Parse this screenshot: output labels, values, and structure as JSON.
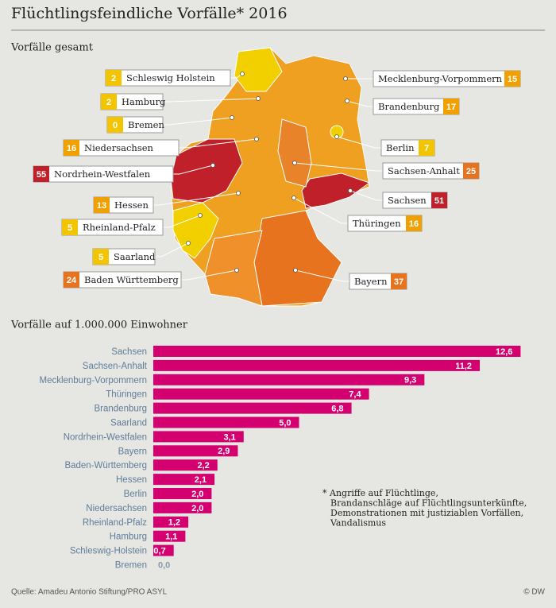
{
  "header": {
    "title": "Flüchtlingsfeindliche Vorfälle* 2016"
  },
  "map": {
    "subtitle": "Vorfälle gesamt",
    "states": [
      {
        "name": "Schleswig Holstein",
        "value": 2,
        "color": "#f2c500"
      },
      {
        "name": "Hamburg",
        "value": 2,
        "color": "#f2c500"
      },
      {
        "name": "Bremen",
        "value": 0,
        "color": "#f2c500"
      },
      {
        "name": "Niedersachsen",
        "value": 16,
        "color": "#f0a000"
      },
      {
        "name": "Nordrhein-Westfalen",
        "value": 55,
        "color": "#c0202a"
      },
      {
        "name": "Hessen",
        "value": 13,
        "color": "#f0a000"
      },
      {
        "name": "Rheinland-Pfalz",
        "value": 5,
        "color": "#f2c500"
      },
      {
        "name": "Saarland",
        "value": 5,
        "color": "#f2c500"
      },
      {
        "name": "Baden Württemberg",
        "value": 24,
        "color": "#e8731f"
      },
      {
        "name": "Mecklenburg-Vorpommern",
        "value": 15,
        "color": "#f0a000"
      },
      {
        "name": "Brandenburg",
        "value": 17,
        "color": "#f0a000"
      },
      {
        "name": "Berlin",
        "value": 7,
        "color": "#f2c500"
      },
      {
        "name": "Sachsen-Anhalt",
        "value": 25,
        "color": "#e8731f"
      },
      {
        "name": "Sachsen",
        "value": 51,
        "color": "#c0202a"
      },
      {
        "name": "Thüringen",
        "value": 16,
        "color": "#f0a000"
      },
      {
        "name": "Bayern",
        "value": 37,
        "color": "#e8731f"
      }
    ]
  },
  "chart_data": {
    "type": "bar",
    "title": "Vorfälle auf 1.000.000 Einwohner",
    "categories": [
      "Sachsen",
      "Sachsen-Anhalt",
      "Mecklenburg-Vorpommern",
      "Thüringen",
      "Brandenburg",
      "Saarland",
      "Nordrhein-Westfalen",
      "Bayern",
      "Baden-Württemberg",
      "Hessen",
      "Berlin",
      "Niedersachsen",
      "Rheinland-Pfalz",
      "Hamburg",
      "Schleswig-Holstein",
      "Bremen"
    ],
    "values": [
      12.6,
      11.2,
      9.3,
      7.4,
      6.8,
      5.0,
      3.1,
      2.9,
      2.2,
      2.1,
      2.0,
      2.0,
      1.2,
      1.1,
      0.7,
      0.0
    ],
    "value_labels": [
      "12,6",
      "11,2",
      "9,3",
      "7,4",
      "6,8",
      "5,0",
      "3,1",
      "2,9",
      "2,2",
      "2,1",
      "2,0",
      "2,0",
      "1,2",
      "1,1",
      "0,7",
      "0,0"
    ],
    "color": "#d4006f"
  },
  "footnote": [
    "* Angriffe auf Flüchtlinge,",
    "Brandanschläge auf Flüchtlingsunterkünfte,",
    "Demonstrationen mit justiziablen Vorfällen,",
    "Vandalismus"
  ],
  "footer": {
    "source": "Quelle: Amadeu Antonio Stiftung/PRO ASYL",
    "credit": "© DW"
  }
}
